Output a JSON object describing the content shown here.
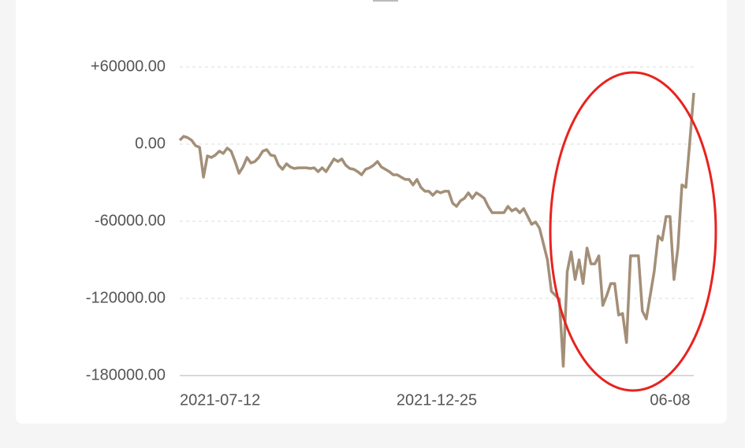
{
  "chart_data": {
    "type": "line",
    "color": "#a38f78",
    "grid": true,
    "ylim": [
      -180000,
      60000
    ],
    "yticks": [
      {
        "value": 60000,
        "label": "+60000.00"
      },
      {
        "value": 0,
        "label": "0.00"
      },
      {
        "value": -60000,
        "label": "-60000.00"
      },
      {
        "value": -120000,
        "label": "-120000.00"
      },
      {
        "value": -180000,
        "label": "-180000.00"
      }
    ],
    "categories": [
      "2021-07-12",
      null,
      null,
      null,
      null,
      null,
      null,
      null,
      null,
      null,
      null,
      null,
      null,
      null,
      null,
      null,
      null,
      null,
      null,
      null,
      null,
      null,
      null,
      null,
      null,
      null,
      null,
      null,
      null,
      null,
      null,
      null,
      null,
      null,
      null,
      null,
      null,
      null,
      null,
      null,
      null,
      null,
      null,
      null,
      null,
      null,
      null,
      null,
      null,
      null,
      null,
      null,
      null,
      null,
      null,
      null,
      null,
      null,
      null,
      null,
      null,
      null,
      null,
      null,
      null,
      "2021-12-25",
      null,
      null,
      null,
      null,
      null,
      null,
      null,
      null,
      null,
      null,
      null,
      null,
      null,
      null,
      null,
      null,
      null,
      null,
      null,
      null,
      null,
      null,
      null,
      null,
      null,
      null,
      null,
      null,
      null,
      null,
      null,
      null,
      null,
      null,
      null,
      null,
      null,
      null,
      null,
      null,
      null,
      null,
      null,
      null,
      null,
      null,
      null,
      null,
      null,
      null,
      null,
      null,
      null,
      null,
      null,
      null,
      null,
      null,
      "06-08",
      null,
      null,
      null,
      null,
      null,
      null
    ],
    "values": [
      3000,
      6000,
      5000,
      3000,
      -1200,
      -2500,
      -25700,
      -9200,
      -10400,
      -8600,
      -5500,
      -7300,
      -3100,
      -5500,
      -13500,
      -22700,
      -17800,
      -10400,
      -14700,
      -13500,
      -10400,
      -5500,
      -4300,
      -8600,
      -9200,
      -16500,
      -19600,
      -15300,
      -17800,
      -19000,
      -18400,
      -18400,
      -18400,
      -19000,
      -18400,
      -21400,
      -18400,
      -21400,
      -16500,
      -11600,
      -13500,
      -11600,
      -16500,
      -19000,
      -19600,
      -21400,
      -23900,
      -19600,
      -18400,
      -16500,
      -13500,
      -17800,
      -19600,
      -21400,
      -23900,
      -23900,
      -25700,
      -27500,
      -27500,
      -31800,
      -27500,
      -33700,
      -36700,
      -36700,
      -39800,
      -36700,
      -37900,
      -36700,
      -36700,
      -45900,
      -48400,
      -44100,
      -42200,
      -37900,
      -42200,
      -37900,
      -39800,
      -42200,
      -48400,
      -53300,
      -53300,
      -53300,
      -53300,
      -48400,
      -52000,
      -50200,
      -53300,
      -50200,
      -56300,
      -62400,
      -60600,
      -65500,
      -77700,
      -90000,
      -114500,
      -117600,
      -120600,
      -172700,
      -99200,
      -83900,
      -105300,
      -90000,
      -108400,
      -80800,
      -93100,
      -93100,
      -86900,
      -125500,
      -117600,
      -108400,
      -108400,
      -132900,
      -131700,
      -154300,
      -86900,
      -86900,
      -86900,
      -129800,
      -135900,
      -117600,
      -99200,
      -71600,
      -74700,
      -56300,
      -56300,
      -105300,
      -80800,
      -31800,
      -33700,
      1800,
      39800
    ]
  }
}
